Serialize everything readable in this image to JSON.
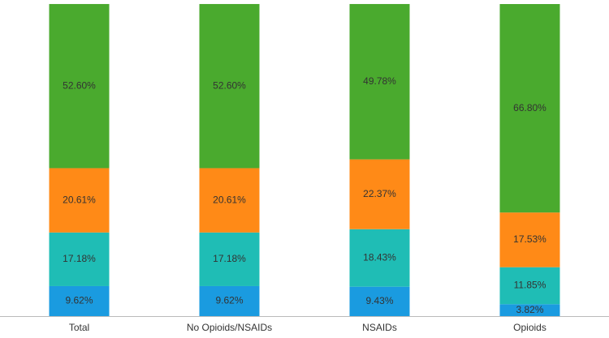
{
  "chart_data": {
    "type": "stacked-bar",
    "categories": [
      "Total",
      "No Opioids/NSAIDs",
      "NSAIDs",
      "Opioids"
    ],
    "ylim": [
      0,
      100
    ],
    "series": [
      {
        "color": "#1a9be0",
        "values": [
          9.62,
          9.62,
          9.43,
          3.82
        ],
        "value_labels": [
          "9.62%",
          "9.62%",
          "9.43%",
          "3.82%"
        ]
      },
      {
        "color": "#1fbdb5",
        "values": [
          17.18,
          17.18,
          18.43,
          11.85
        ],
        "value_labels": [
          "17.18%",
          "17.18%",
          "18.43%",
          "11.85%"
        ]
      },
      {
        "color": "#ff8a17",
        "values": [
          20.61,
          20.61,
          22.37,
          17.53
        ],
        "value_labels": [
          "20.61%",
          "20.61%",
          "22.37%",
          "17.53%"
        ]
      },
      {
        "color": "#4aaa2e",
        "values": [
          52.6,
          52.6,
          49.78,
          66.8
        ],
        "value_labels": [
          "52.60%",
          "52.60%",
          "49.78%",
          "66.80%"
        ]
      }
    ]
  }
}
